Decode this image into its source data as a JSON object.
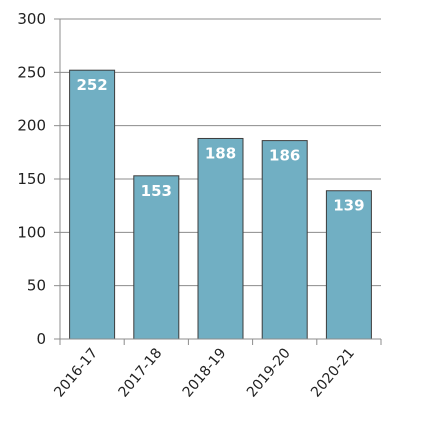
{
  "chart_data": {
    "type": "bar",
    "categories": [
      "2016-17",
      "2017-18",
      "2018-19",
      "2019-20",
      "2020-21"
    ],
    "values": [
      252,
      153,
      188,
      186,
      139
    ],
    "data_labels": [
      "252",
      "153",
      "188",
      "186",
      "139"
    ],
    "title": "",
    "xlabel": "",
    "ylabel": "",
    "ylim": [
      0,
      300
    ],
    "yticks": [
      0,
      50,
      100,
      150,
      200,
      250,
      300
    ],
    "ytick_labels": [
      "0",
      "50",
      "100",
      "150",
      "200",
      "250",
      "300"
    ],
    "grid": true,
    "legend": "none",
    "colors": {
      "bar_fill": "#71AFC3",
      "bar_stroke": "#3D3D3D",
      "grid": "#8C8C8C",
      "axis": "#8C8C8C"
    }
  }
}
